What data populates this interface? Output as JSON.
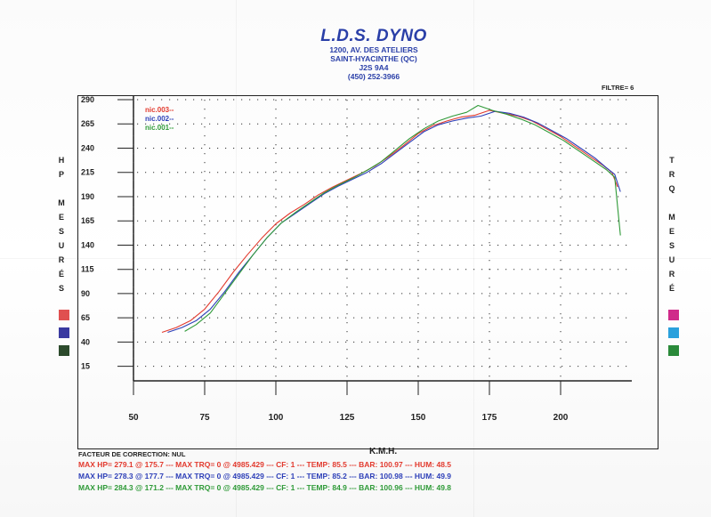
{
  "header": {
    "title": "L.D.S. DYNO",
    "address1": "1200, AV. DES ATELIERS",
    "address2": "SAINT-HYACINTHE (QC)",
    "postal": "J2S 9A4",
    "phone": "(450) 252-3966"
  },
  "filter_label": "FILTRE=  6",
  "left_axis_letters": [
    "H",
    "P",
    "",
    "M",
    "E",
    "S",
    "U",
    "R",
    "É",
    "S"
  ],
  "right_axis_letters": [
    "T",
    "R",
    "Q",
    "",
    "M",
    "E",
    "S",
    "U",
    "R",
    "É"
  ],
  "correction": "FACTEUR DE CORRECTION: NUL",
  "stats": [
    "MAX HP= 279.1 @ 175.7  ---  MAX TRQ=  0 @ 4985.429  ---  CF: 1  ---  TEMP: 85.5  ---  BAR: 100.97  ---  HUM: 48.5",
    "MAX HP= 278.3 @ 177.7  ---  MAX TRQ=  0 @ 4985.429  ---  CF: 1  ---  TEMP: 85.2  ---  BAR: 100.98  ---  HUM: 49.9",
    "MAX HP= 284.3 @ 171.2  ---  MAX TRQ=  0 @ 4985.429  ---  CF: 1  ---  TEMP: 84.9  ---  BAR: 100.96  ---  HUM: 49.8"
  ],
  "left_swatches": [
    "#e05050",
    "#3a3aa0",
    "#2c4a2c"
  ],
  "right_swatches": [
    "#d02a8a",
    "#2aa0dc",
    "#2a8a3a"
  ],
  "chart_data": {
    "type": "line",
    "xlabel": "K.M.H.",
    "ylabel": "",
    "xlim": [
      50,
      225
    ],
    "ylim": [
      0,
      290
    ],
    "x_ticks": [
      50,
      75,
      100,
      125,
      150,
      175,
      200
    ],
    "y_ticks": [
      15,
      40,
      65,
      90,
      115,
      140,
      165,
      190,
      215,
      240,
      265,
      290
    ],
    "grid": "dotted",
    "legend": "top-left",
    "series": [
      {
        "name": "nic.003--",
        "color": "#e23a2e",
        "x": [
          60,
          65,
          70,
          75,
          80,
          85,
          90,
          95,
          100,
          105,
          110,
          115,
          120,
          125,
          130,
          135,
          140,
          145,
          150,
          155,
          160,
          165,
          170,
          175,
          180,
          185,
          190,
          195,
          200,
          205,
          210,
          215,
          218,
          220
        ],
        "y": [
          50,
          55,
          62,
          74,
          92,
          112,
          130,
          147,
          162,
          173,
          182,
          192,
          200,
          207,
          214,
          222,
          232,
          243,
          255,
          263,
          268,
          272,
          274,
          279,
          276,
          273,
          268,
          260,
          252,
          242,
          232,
          222,
          215,
          200
        ]
      },
      {
        "name": "nic.002--",
        "color": "#2d3fb8",
        "x": [
          62,
          67,
          72,
          77,
          82,
          87,
          92,
          97,
          102,
          107,
          112,
          117,
          122,
          127,
          132,
          137,
          142,
          147,
          152,
          157,
          162,
          167,
          172,
          177,
          182,
          187,
          192,
          197,
          202,
          207,
          212,
          216,
          219,
          221
        ],
        "y": [
          50,
          55,
          62,
          74,
          92,
          112,
          130,
          148,
          163,
          173,
          183,
          193,
          201,
          208,
          215,
          224,
          235,
          246,
          257,
          264,
          268,
          271,
          273,
          278,
          276,
          272,
          266,
          258,
          250,
          240,
          230,
          220,
          213,
          195
        ]
      },
      {
        "name": "nic.001--",
        "color": "#2f9a38",
        "x": [
          68,
          72,
          77,
          82,
          87,
          92,
          97,
          102,
          107,
          112,
          117,
          122,
          127,
          132,
          137,
          142,
          147,
          152,
          157,
          162,
          167,
          171,
          176,
          181,
          186,
          191,
          196,
          201,
          206,
          211,
          216,
          219,
          221
        ],
        "y": [
          51,
          58,
          70,
          90,
          110,
          130,
          148,
          163,
          174,
          184,
          194,
          202,
          209,
          217,
          226,
          238,
          250,
          260,
          268,
          273,
          277,
          284,
          279,
          275,
          270,
          264,
          256,
          248,
          238,
          228,
          218,
          210,
          150
        ]
      }
    ]
  }
}
